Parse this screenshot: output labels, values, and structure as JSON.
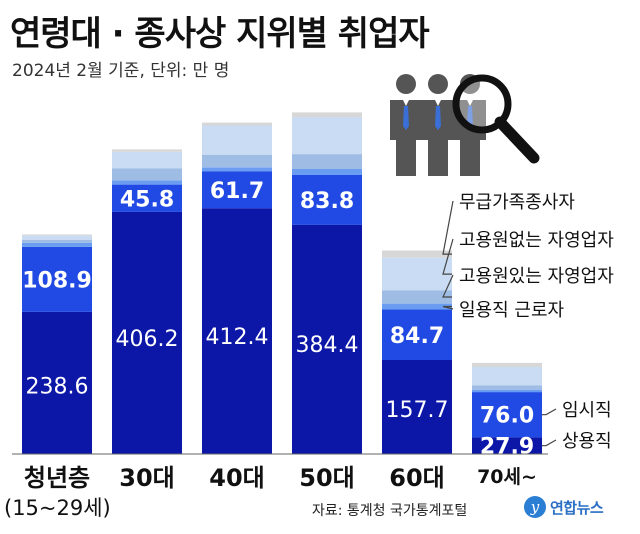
{
  "header": {
    "title": "연령대 · 종사상 지위별 취업자",
    "subtitle": "2024년 2월 기준, 단위: 만 명"
  },
  "footer": {
    "source": "자료: 통계청 국가통계포털",
    "logo_mark": "y",
    "logo_text": "연합뉴스"
  },
  "youth_range": "(15~29세)",
  "colors": {
    "regular": "#0c17a8",
    "temporary": "#2149e3",
    "daily": "#6a9df2",
    "self_with": "#9fbde4",
    "self_without": "#c9dcf3",
    "unpaid": "#d7d7d7"
  },
  "icon": "people-magnifier-icon",
  "chart_data": {
    "type": "bar",
    "stacked": true,
    "categories": [
      "청년층",
      "30대",
      "40대",
      "50대",
      "60대",
      "70세~"
    ],
    "series": [
      {
        "name": "상용직",
        "values": [
          238.6,
          406.2,
          412.4,
          384.4,
          157.7,
          27.9
        ],
        "labeled": true
      },
      {
        "name": "임시직",
        "values": [
          108.9,
          45.8,
          61.7,
          83.8,
          84.7,
          76.0
        ],
        "labeled": true
      },
      {
        "name": "일용직 근로자",
        "values": [
          7,
          7,
          7,
          10,
          10,
          4
        ],
        "labeled": false
      },
      {
        "name": "고용원있는 자영업자",
        "values": [
          5,
          20,
          21,
          25,
          22,
          7
        ],
        "labeled": false
      },
      {
        "name": "고용원없는 자영업자",
        "values": [
          7,
          28,
          49,
          62,
          55,
          31
        ],
        "labeled": false
      },
      {
        "name": "무급가족종사자",
        "values": [
          2,
          4,
          5,
          8,
          12,
          7
        ],
        "labeled": false
      }
    ],
    "ylim": [
      0,
      600
    ],
    "grid": false,
    "legend": "right, pointing to segments"
  }
}
